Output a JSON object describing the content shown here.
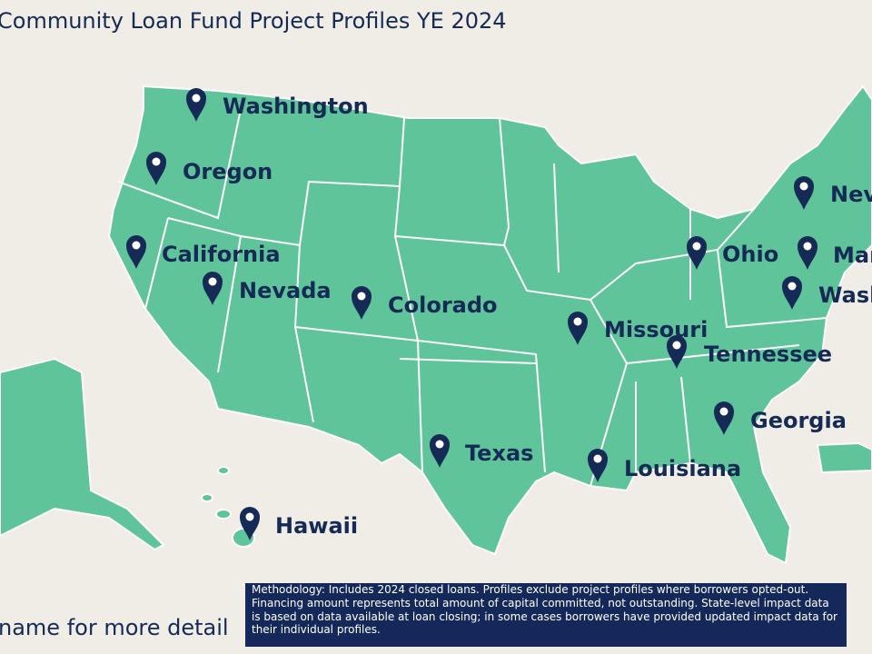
{
  "header": {
    "title": "Community Loan Fund Project Profiles YE 2024"
  },
  "markers": [
    {
      "label": "Washington"
    },
    {
      "label": "Oregon"
    },
    {
      "label": "California"
    },
    {
      "label": "Nevada"
    },
    {
      "label": "Colorado"
    },
    {
      "label": "Missouri"
    },
    {
      "label": "Ohio"
    },
    {
      "label": "Tennessee"
    },
    {
      "label": "Georgia"
    },
    {
      "label": "Texas"
    },
    {
      "label": "Louisiana"
    },
    {
      "label": "Hawaii"
    },
    {
      "label": "Nev"
    },
    {
      "label": "Mar"
    },
    {
      "label": "Wash"
    }
  ],
  "footer": {
    "hint": "name for more detail",
    "methodology": "Methodology: Includes 2024 closed loans. Profiles exclude project profiles where borrowers opted-out. Financing amount represents total amount of capital committed, not outstanding. State-level impact data is based on data available at loan closing; in some cases borrowers have provided updated impact data for their individual profiles."
  }
}
